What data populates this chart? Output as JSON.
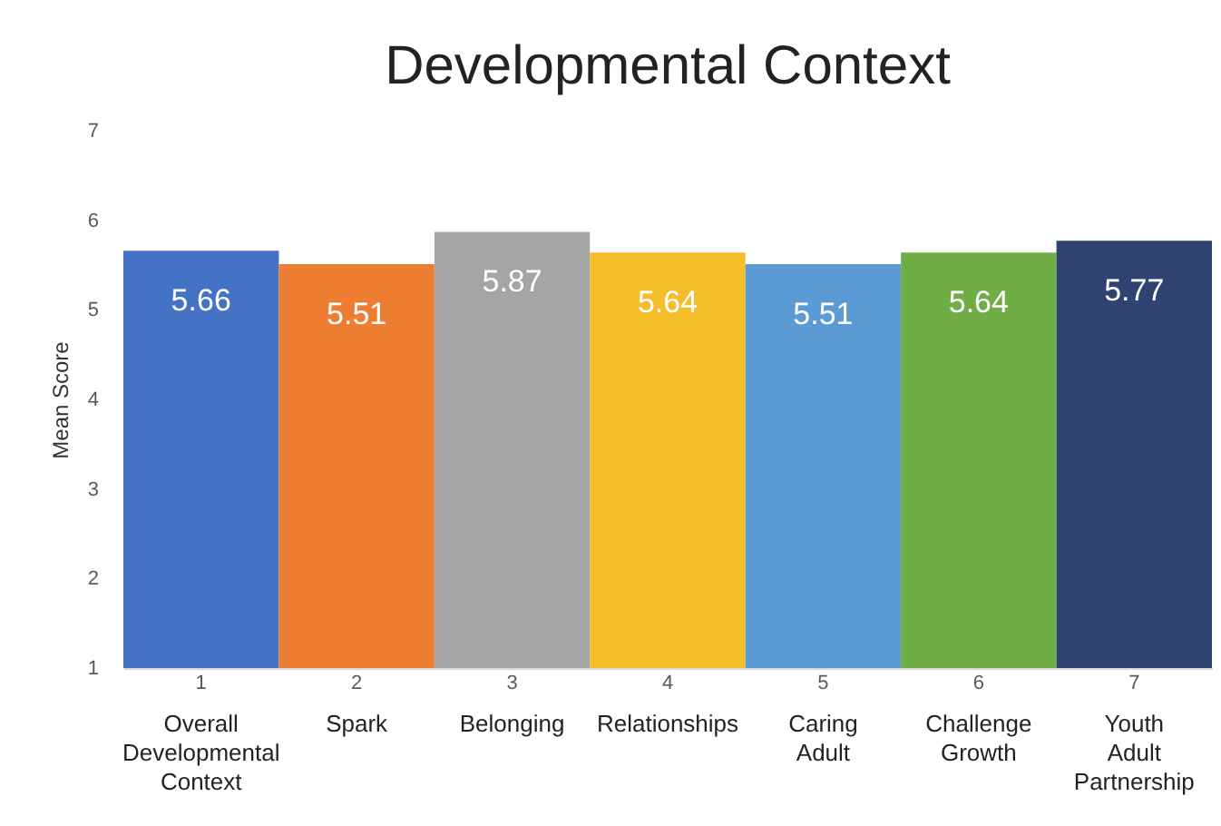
{
  "chart_data": {
    "type": "bar",
    "title": "Developmental Context",
    "ylabel": "Mean Score",
    "categories": [
      "1",
      "2",
      "3",
      "4",
      "5",
      "6",
      "7"
    ],
    "values": [
      5.66,
      5.51,
      5.87,
      5.64,
      5.51,
      5.64,
      5.77
    ],
    "colors": [
      "#4472c4",
      "#ed7d31",
      "#a5a5a5",
      "#f6bd2a",
      "#5b9bd5",
      "#70ad47",
      "#2e4371"
    ],
    "ylim": [
      1,
      7
    ],
    "yticks": [
      1,
      2,
      3,
      4,
      5,
      6,
      7
    ],
    "grid": false,
    "data_labels": true,
    "annotations": [
      "Overall Developmental Context",
      "Spark",
      "Belonging",
      "Relationships",
      "Caring Adult",
      "Challenge Growth",
      "Youth Adult Partnership"
    ]
  }
}
